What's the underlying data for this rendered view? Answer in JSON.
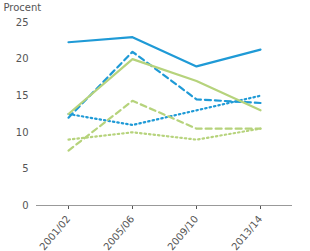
{
  "chart_data": {
    "type": "line",
    "y_label": "Procent",
    "categories": [
      "2001/02",
      "2005/06",
      "2009/10",
      "2013/14"
    ],
    "series": [
      {
        "color": "#1f9ad6",
        "line_style": "solid",
        "values": [
          22.3,
          23,
          19,
          21.3
        ]
      },
      {
        "color": "#1f9ad6",
        "line_style": "dashed",
        "values": [
          12,
          21,
          14.5,
          14
        ]
      },
      {
        "color": "#1f9ad6",
        "line_style": "dotted",
        "values": [
          12.5,
          11,
          13,
          15
        ]
      },
      {
        "color": "#b6d37c",
        "line_style": "solid",
        "values": [
          12.5,
          20,
          17,
          13
        ]
      },
      {
        "color": "#b6d37c",
        "line_style": "dashed",
        "values": [
          7.5,
          14.3,
          10.5,
          10.5
        ]
      },
      {
        "color": "#b6d37c",
        "line_style": "dotted",
        "values": [
          9,
          10,
          9,
          10.5
        ]
      }
    ],
    "ylim": [
      0,
      25
    ],
    "yticks": [
      0,
      5,
      10,
      15,
      20,
      25
    ],
    "grid": false
  }
}
